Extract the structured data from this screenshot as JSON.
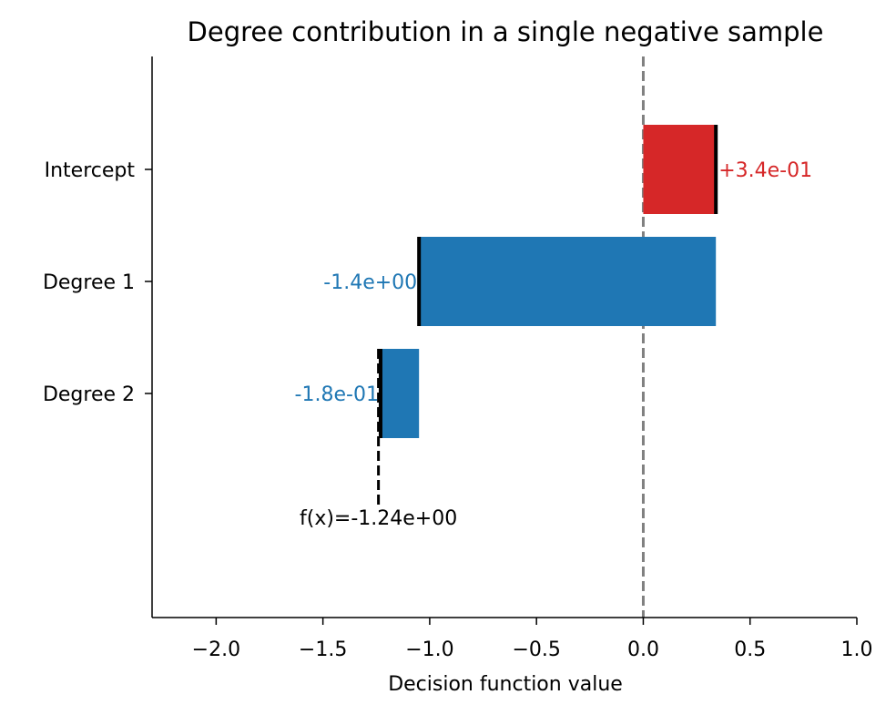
{
  "chart_data": {
    "type": "bar",
    "orientation": "horizontal",
    "style": "waterfall",
    "title": "Degree contribution in a single negative sample",
    "xlabel": "Decision function value",
    "ylabel": "",
    "xlim": [
      -2.3,
      1.0
    ],
    "x_ticks": [
      -2.0,
      -1.5,
      -1.0,
      -0.5,
      0.0,
      0.5,
      1.0
    ],
    "x_tick_labels": [
      "−2.0",
      "−1.5",
      "−1.0",
      "−0.5",
      "0.0",
      "0.5",
      "1.0"
    ],
    "categories": [
      "Intercept",
      "Degree 1",
      "Degree 2"
    ],
    "values": [
      0.34,
      -1.39,
      -0.18
    ],
    "value_labels": [
      "+3.4e-01",
      "-1.4e+00",
      "-1.8e-01"
    ],
    "final_value": -1.24,
    "final_label": "f(x)=-1.24e+00",
    "reference_line": 0.0,
    "grid": false,
    "colors": {
      "positive": "#d62728",
      "negative": "#1f77b4",
      "reference": "#808080",
      "axis": "#000000"
    }
  }
}
